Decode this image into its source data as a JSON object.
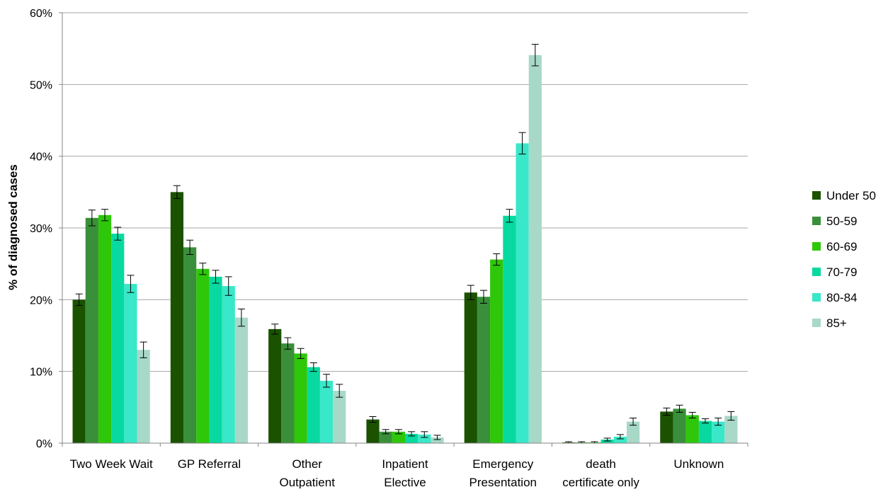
{
  "chart_data": {
    "type": "bar",
    "title": "",
    "xlabel": "",
    "ylabel": "% of diagnosed cases",
    "ylim": [
      0,
      60
    ],
    "yticks": [
      0,
      10,
      20,
      30,
      40,
      50,
      60
    ],
    "ytick_labels": [
      "0%",
      "10%",
      "20%",
      "30%",
      "40%",
      "50%",
      "60%"
    ],
    "grid": "horizontal",
    "legend_position": "right",
    "categories": [
      [
        "Two Week Wait"
      ],
      [
        "GP Referral"
      ],
      [
        "Other",
        "Outpatient"
      ],
      [
        "Inpatient",
        "Elective"
      ],
      [
        "Emergency",
        "Presentation"
      ],
      [
        "death",
        "certificate only"
      ],
      [
        "Unknown"
      ]
    ],
    "series": [
      {
        "name": "Under 50",
        "color": "#1a5200",
        "values": [
          20.0,
          35.0,
          15.9,
          3.3,
          21.0,
          0.1,
          4.4
        ],
        "err": [
          0.8,
          0.9,
          0.7,
          0.4,
          1.0,
          0.1,
          0.5
        ]
      },
      {
        "name": "50-59",
        "color": "#3a8f3a",
        "values": [
          31.4,
          27.3,
          13.9,
          1.6,
          20.4,
          0.1,
          4.8
        ],
        "err": [
          1.1,
          1.0,
          0.8,
          0.3,
          0.9,
          0.1,
          0.5
        ]
      },
      {
        "name": "60-69",
        "color": "#2ec70a",
        "values": [
          31.8,
          24.3,
          12.5,
          1.6,
          25.6,
          0.1,
          3.9
        ],
        "err": [
          0.8,
          0.8,
          0.7,
          0.3,
          0.8,
          0.1,
          0.4
        ]
      },
      {
        "name": "70-79",
        "color": "#08d9a0",
        "values": [
          29.2,
          23.2,
          10.6,
          1.3,
          31.7,
          0.5,
          3.1
        ],
        "err": [
          0.9,
          0.9,
          0.6,
          0.3,
          0.9,
          0.2,
          0.3
        ]
      },
      {
        "name": "80-84",
        "color": "#38e8c8",
        "values": [
          22.2,
          21.9,
          8.7,
          1.2,
          41.8,
          0.9,
          3.0
        ],
        "err": [
          1.2,
          1.3,
          0.9,
          0.4,
          1.5,
          0.3,
          0.5
        ]
      },
      {
        "name": "85+",
        "color": "#a8d8c8",
        "values": [
          13.0,
          17.5,
          7.3,
          0.8,
          54.1,
          3.0,
          3.8
        ],
        "err": [
          1.1,
          1.2,
          0.9,
          0.3,
          1.5,
          0.5,
          0.6
        ]
      }
    ]
  }
}
